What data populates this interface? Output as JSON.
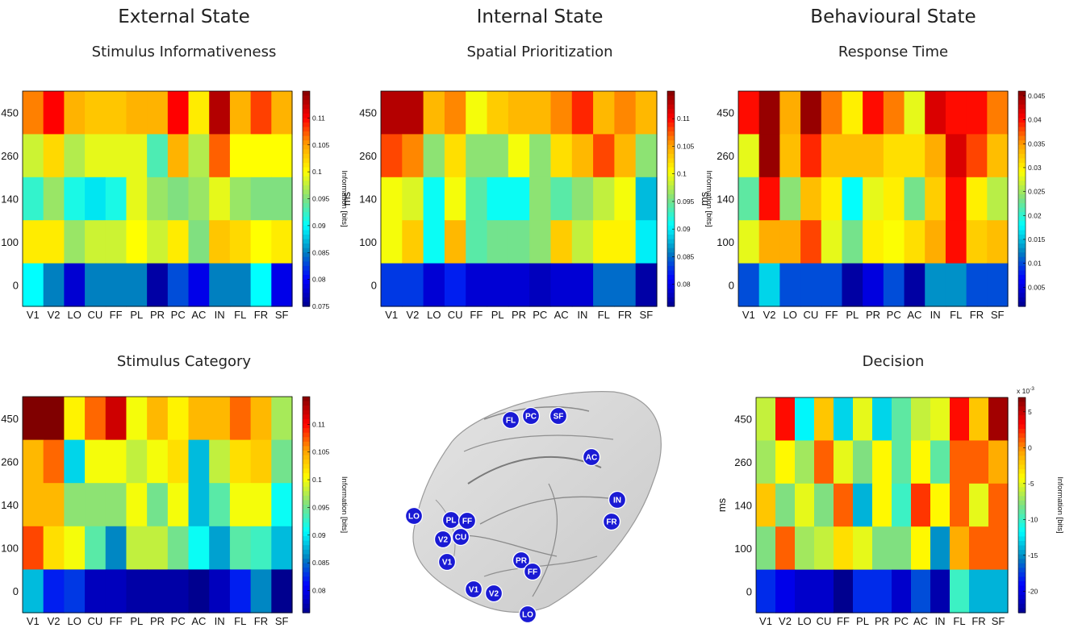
{
  "headers": {
    "col1": "External State",
    "col2": "Internal State",
    "col3": "Behavioural State"
  },
  "colormap": [
    "#00008f",
    "#0000ff",
    "#0080c0",
    "#00ffff",
    "#80e080",
    "#ffff00",
    "#ffa000",
    "#ff0000",
    "#800000"
  ],
  "brain": {
    "electrodes": [
      "FL",
      "PC",
      "SF",
      "AC",
      "IN",
      "FR",
      "LO",
      "PL",
      "FF",
      "V2",
      "CU",
      "V1",
      "PR",
      "FF",
      "V1",
      "V2",
      "LO"
    ],
    "marker_color": "#1a1ad4"
  },
  "chart_data": [
    {
      "type": "heatmap",
      "title": "Stimulus Informativeness",
      "xlabel": "",
      "ylabel": "ms",
      "categories": [
        "V1",
        "V2",
        "LO",
        "CU",
        "FF",
        "PL",
        "PR",
        "PC",
        "AC",
        "IN",
        "FL",
        "FR",
        "SF"
      ],
      "y_ticks": [
        "450",
        "260",
        "140",
        "100",
        "0"
      ],
      "colorbar": {
        "label": "Information [bits]",
        "ticks": [
          "0.11",
          "0.105",
          "0.1",
          "0.095",
          "0.09",
          "0.085",
          "0.08",
          "0.075"
        ],
        "range": [
          0.075,
          0.115
        ]
      },
      "values": [
        [
          0.106,
          0.11,
          0.104,
          0.103,
          0.103,
          0.104,
          0.104,
          0.11,
          0.101,
          0.113,
          0.104,
          0.108,
          0.104
        ],
        [
          0.098,
          0.102,
          0.097,
          0.099,
          0.099,
          0.099,
          0.093,
          0.104,
          0.097,
          0.107,
          0.1,
          0.1,
          0.1
        ],
        [
          0.092,
          0.096,
          0.091,
          0.089,
          0.091,
          0.099,
          0.096,
          0.095,
          0.096,
          0.099,
          0.096,
          0.095,
          0.095
        ],
        [
          0.101,
          0.101,
          0.096,
          0.098,
          0.098,
          0.1,
          0.098,
          0.101,
          0.095,
          0.103,
          0.102,
          0.1,
          0.101
        ],
        [
          0.09,
          0.085,
          0.078,
          0.085,
          0.085,
          0.085,
          0.076,
          0.083,
          0.079,
          0.085,
          0.085,
          0.09,
          0.079
        ]
      ]
    },
    {
      "type": "heatmap",
      "title": "Spatial Prioritization",
      "xlabel": "",
      "ylabel": "ms",
      "categories": [
        "V1",
        "V2",
        "LO",
        "CU",
        "FF",
        "PL",
        "PR",
        "PC",
        "AC",
        "IN",
        "FL",
        "FR",
        "SF"
      ],
      "y_ticks": [
        "450",
        "260",
        "140",
        "100",
        "0"
      ],
      "colorbar": {
        "label": "Information [bits]",
        "ticks": [
          "0.11",
          "0.105",
          "0.1",
          "0.095",
          "0.09",
          "0.085",
          "0.08"
        ],
        "range": [
          0.076,
          0.115
        ]
      },
      "values": [
        [
          0.113,
          0.113,
          0.104,
          0.106,
          0.1,
          0.103,
          0.104,
          0.104,
          0.106,
          0.109,
          0.104,
          0.106,
          0.104
        ],
        [
          0.108,
          0.106,
          0.096,
          0.102,
          0.096,
          0.096,
          0.1,
          0.096,
          0.102,
          0.104,
          0.108,
          0.104,
          0.096
        ],
        [
          0.1,
          0.099,
          0.091,
          0.1,
          0.094,
          0.091,
          0.091,
          0.096,
          0.094,
          0.096,
          0.098,
          0.1,
          0.088
        ],
        [
          0.1,
          0.103,
          0.091,
          0.104,
          0.094,
          0.095,
          0.095,
          0.096,
          0.103,
          0.098,
          0.101,
          0.101,
          0.09
        ],
        [
          0.083,
          0.083,
          0.079,
          0.082,
          0.079,
          0.079,
          0.079,
          0.078,
          0.079,
          0.079,
          0.085,
          0.085,
          0.077
        ]
      ]
    },
    {
      "type": "heatmap",
      "title": "Response Time",
      "xlabel": "",
      "ylabel": "ms",
      "categories": [
        "V1",
        "V2",
        "LO",
        "CU",
        "FF",
        "PL",
        "PR",
        "PC",
        "AC",
        "IN",
        "FL",
        "FR",
        "SF"
      ],
      "y_ticks": [
        "450",
        "260",
        "140",
        "100",
        "0"
      ],
      "colorbar": {
        "label": "",
        "ticks": [
          "0.045",
          "0.04",
          "0.035",
          "0.03",
          "0.025",
          "0.02",
          "0.015",
          "0.01",
          "0.005"
        ],
        "range": [
          0.001,
          0.046
        ]
      },
      "values": [
        [
          0.04,
          0.045,
          0.034,
          0.045,
          0.036,
          0.03,
          0.04,
          0.036,
          0.028,
          0.042,
          0.04,
          0.04,
          0.036
        ],
        [
          0.028,
          0.045,
          0.033,
          0.039,
          0.033,
          0.033,
          0.033,
          0.031,
          0.031,
          0.034,
          0.042,
          0.038,
          0.033
        ],
        [
          0.022,
          0.04,
          0.024,
          0.033,
          0.03,
          0.018,
          0.028,
          0.03,
          0.023,
          0.032,
          0.04,
          0.03,
          0.026
        ],
        [
          0.028,
          0.034,
          0.034,
          0.038,
          0.028,
          0.023,
          0.03,
          0.029,
          0.031,
          0.034,
          0.04,
          0.032,
          0.033
        ],
        [
          0.01,
          0.016,
          0.01,
          0.01,
          0.01,
          0.002,
          0.005,
          0.01,
          0.002,
          0.013,
          0.013,
          0.01,
          0.01
        ]
      ]
    },
    {
      "type": "heatmap",
      "title": "Stimulus Category",
      "xlabel": "",
      "ylabel": "ms",
      "categories": [
        "V1",
        "V2",
        "LO",
        "CU",
        "FF",
        "PL",
        "PR",
        "PC",
        "AC",
        "IN",
        "FL",
        "FR",
        "SF"
      ],
      "y_ticks": [
        "450",
        "260",
        "140",
        "100",
        "0"
      ],
      "colorbar": {
        "label": "Information [bits]",
        "ticks": [
          "0.11",
          "0.105",
          "0.1",
          "0.095",
          "0.09",
          "0.085",
          "0.08"
        ],
        "range": [
          0.076,
          0.115
        ]
      },
      "values": [
        [
          0.115,
          0.115,
          0.101,
          0.107,
          0.112,
          0.1,
          0.104,
          0.101,
          0.104,
          0.104,
          0.107,
          0.104,
          0.097
        ],
        [
          0.104,
          0.107,
          0.089,
          0.1,
          0.1,
          0.098,
          0.1,
          0.102,
          0.088,
          0.098,
          0.102,
          0.103,
          0.095
        ],
        [
          0.104,
          0.104,
          0.096,
          0.096,
          0.096,
          0.1,
          0.095,
          0.1,
          0.088,
          0.094,
          0.1,
          0.1,
          0.091
        ],
        [
          0.108,
          0.102,
          0.1,
          0.094,
          0.086,
          0.098,
          0.098,
          0.095,
          0.091,
          0.087,
          0.094,
          0.093,
          0.088
        ],
        [
          0.088,
          0.082,
          0.083,
          0.078,
          0.078,
          0.077,
          0.077,
          0.077,
          0.076,
          0.078,
          0.082,
          0.086,
          0.076
        ]
      ]
    },
    {
      "type": "heatmap",
      "title": "Decision",
      "xlabel": "",
      "ylabel": "ms",
      "categories": [
        "V1",
        "V2",
        "LO",
        "CU",
        "FF",
        "PL",
        "PR",
        "PC",
        "AC",
        "IN",
        "FL",
        "FR",
        "SF"
      ],
      "y_ticks": [
        "450",
        "260",
        "140",
        "100",
        "0"
      ],
      "colorbar": {
        "label": "Information [bits]",
        "multiplier": "x 10",
        "multiplier_exp": "-3",
        "ticks": [
          "5",
          "0",
          "-5",
          "-10",
          "-15",
          "-20"
        ],
        "range": [
          -23,
          7
        ]
      },
      "values": [
        [
          -6,
          3,
          -12,
          -2,
          -13,
          -5,
          -13,
          -9,
          -6,
          -5,
          3,
          -2,
          6
        ],
        [
          -7,
          -4,
          -7,
          1,
          -5,
          -8,
          -4,
          -9,
          -4,
          -9,
          1,
          1,
          -1
        ],
        [
          -2,
          -8,
          -5,
          -8,
          1,
          -14,
          -4,
          -10,
          2,
          -4,
          1,
          -5,
          1
        ],
        [
          -8,
          1,
          -7,
          -6,
          -3,
          -5,
          -8,
          -8,
          -4,
          -15,
          -1,
          1,
          1
        ],
        [
          -18,
          -20,
          -21,
          -21,
          -23,
          -18,
          -18,
          -21,
          -17,
          -22,
          -10,
          -14,
          -14
        ]
      ]
    }
  ]
}
